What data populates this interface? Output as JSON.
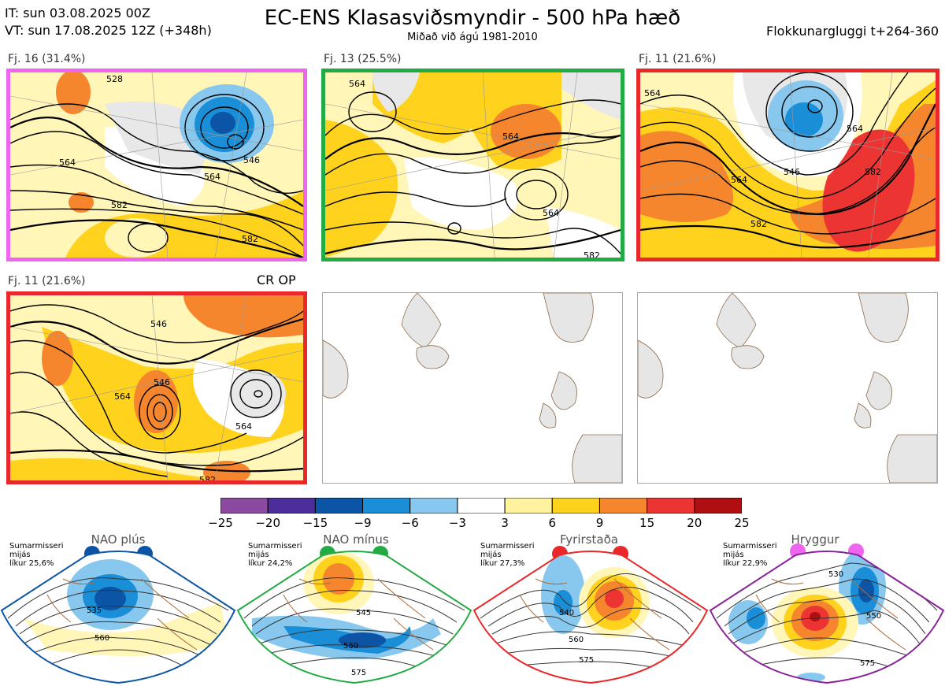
{
  "header": {
    "it_line": "IT: sun 03.08.2025 00Z",
    "vt_line": "VT: sun 17.08.2025 12Z  (+348h)",
    "title": "EC-ENS Klasasviðsmyndir - 500 hPa hæð",
    "subtitle": "Miðað við ágú 1981-2010",
    "window": "Flokkunargluggi t+264-360"
  },
  "panels": [
    {
      "label": "Fj. 16 (31.4%)",
      "border_color": "#ee66ee",
      "contour_labels": [
        "528",
        "546",
        "564",
        "564",
        "582",
        "582"
      ]
    },
    {
      "label": "Fj. 13 (25.5%)",
      "border_color": "#22aa44",
      "contour_labels": [
        "564",
        "564",
        "564",
        "582"
      ]
    },
    {
      "label": "Fj. 11 (21.6%)",
      "border_color": "#e8282a",
      "contour_labels": [
        "546",
        "564",
        "564",
        "582",
        "582",
        "564"
      ]
    },
    {
      "label": "Fj. 11 (21.6%)",
      "border_color": "#e8282a",
      "extra": "CR OP",
      "contour_labels": [
        "546",
        "546",
        "564",
        "564",
        "582"
      ]
    }
  ],
  "colorbar": {
    "ticks": [
      "−25",
      "−20",
      "−15",
      "−9",
      "−6",
      "−3",
      "3",
      "6",
      "9",
      "15",
      "20",
      "25"
    ],
    "colors": [
      "#8b4aa0",
      "#4b2e9a",
      "#0b54a6",
      "#1a8fd8",
      "#88c8ee",
      "#ffffff",
      "#fff3a0",
      "#ffd21e",
      "#f5862e",
      "#ec3533",
      "#b00f12"
    ]
  },
  "regimes": [
    {
      "name": "NAO plús",
      "desc": [
        "Sumarmisseri",
        "mijás",
        "líkur 25,6%"
      ],
      "color": "#0b54a6",
      "contour_labels": [
        "535",
        "560"
      ]
    },
    {
      "name": "NAO mínus",
      "desc": [
        "Sumarmisseri",
        "mijás",
        "líkur 24,2%"
      ],
      "color": "#22aa44",
      "contour_labels": [
        "545",
        "560",
        "575"
      ]
    },
    {
      "name": "Fyrirstaða",
      "desc": [
        "Sumarmisseri",
        "mijás",
        "líkur 27,3%"
      ],
      "color": "#e8282a",
      "contour_labels": [
        "540",
        "560",
        "575"
      ]
    },
    {
      "name": "Hryggur",
      "desc": [
        "Sumarmisseri",
        "mijás",
        "líkur 22,9%"
      ],
      "color": "#ee66ee",
      "border_color": "#882299",
      "contour_labels": [
        "530",
        "550",
        "575"
      ]
    }
  ],
  "chart_data": {
    "type": "heatmap",
    "title": "EC-ENS Klasasviðsmyndir - 500 hPa hæð",
    "variable": "500 hPa height anomaly (dam) with height contours",
    "scale": [
      -25,
      -20,
      -15,
      -9,
      -6,
      -3,
      3,
      6,
      9,
      15,
      20,
      25
    ],
    "clusters": [
      {
        "name": "Fj. 16",
        "percent": 31.4
      },
      {
        "name": "Fj. 13",
        "percent": 25.5
      },
      {
        "name": "Fj. 11",
        "percent": 21.6
      }
    ],
    "regime_probabilities": [
      {
        "name": "NAO plús",
        "percent": 25.6
      },
      {
        "name": "NAO mínus",
        "percent": 24.2
      },
      {
        "name": "Fyrirstaða",
        "percent": 27.3
      },
      {
        "name": "Hryggur",
        "percent": 22.9
      }
    ]
  }
}
